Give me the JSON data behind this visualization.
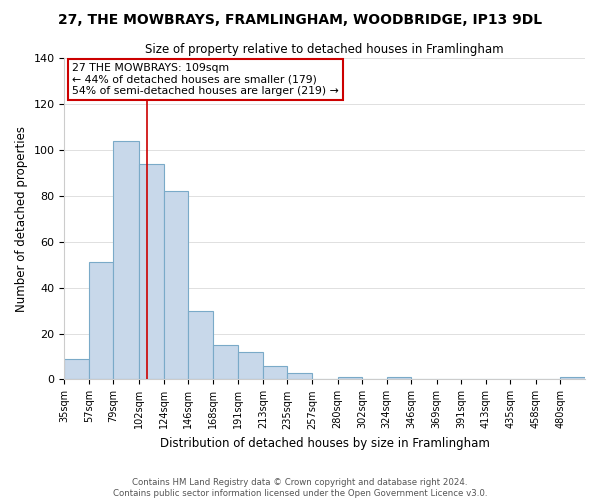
{
  "title": "27, THE MOWBRAYS, FRAMLINGHAM, WOODBRIDGE, IP13 9DL",
  "subtitle": "Size of property relative to detached houses in Framlingham",
  "xlabel": "Distribution of detached houses by size in Framlingham",
  "ylabel": "Number of detached properties",
  "bar_labels": [
    "35sqm",
    "57sqm",
    "79sqm",
    "102sqm",
    "124sqm",
    "146sqm",
    "168sqm",
    "191sqm",
    "213sqm",
    "235sqm",
    "257sqm",
    "280sqm",
    "302sqm",
    "324sqm",
    "346sqm",
    "369sqm",
    "391sqm",
    "413sqm",
    "435sqm",
    "458sqm",
    "480sqm"
  ],
  "bar_values": [
    9,
    51,
    104,
    94,
    82,
    30,
    15,
    12,
    6,
    3,
    0,
    1,
    0,
    1,
    0,
    0,
    0,
    0,
    0,
    0,
    1
  ],
  "bar_color": "#c8d8ea",
  "bar_edge_color": "#7aaac8",
  "ylim": [
    0,
    140
  ],
  "yticks": [
    0,
    20,
    40,
    60,
    80,
    100,
    120,
    140
  ],
  "property_line_x": 109,
  "property_line_label": "27 THE MOWBRAYS: 109sqm",
  "annotation_line1": "← 44% of detached houses are smaller (179)",
  "annotation_line2": "54% of semi-detached houses are larger (219) →",
  "footnote1": "Contains HM Land Registry data © Crown copyright and database right 2024.",
  "footnote2": "Contains public sector information licensed under the Open Government Licence v3.0.",
  "bin_edges": [
    35,
    57,
    79,
    102,
    124,
    146,
    168,
    191,
    213,
    235,
    257,
    280,
    302,
    324,
    346,
    369,
    391,
    413,
    435,
    458,
    480,
    502
  ]
}
